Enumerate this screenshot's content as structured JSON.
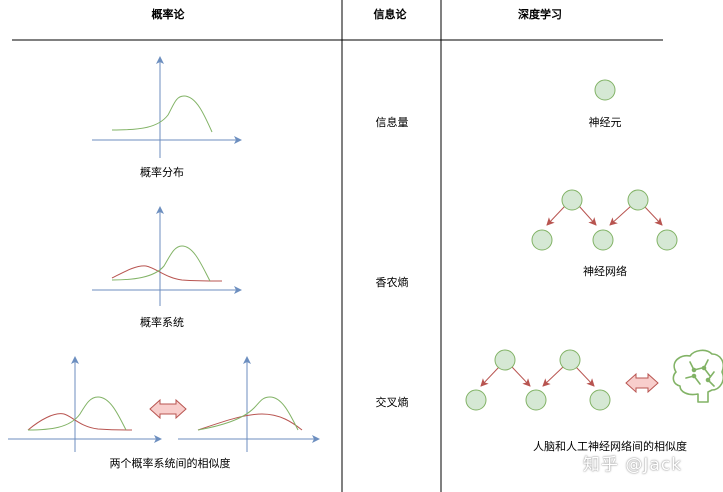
{
  "headers": {
    "probability": "概率论",
    "information": "信息论",
    "deep_learning": "深度学习"
  },
  "rows": [
    {
      "probability_label": "概率分布",
      "information_label": "信息量",
      "deep_learning_label": "神经元"
    },
    {
      "probability_label": "概率系统",
      "information_label": "香农熵",
      "deep_learning_label": "神经网络"
    },
    {
      "probability_label": "两个概率系统间的相似度",
      "information_label": "交叉熵",
      "deep_learning_label": "人脑和人工神经网络间的相似度"
    }
  ],
  "watermark": "知乎 @Jack",
  "colors": {
    "axis": "#6c8ebf",
    "curve_green": "#82b366",
    "curve_red": "#b85450",
    "node_fill": "#d5e8d4",
    "node_stroke": "#82b366",
    "edge": "#b85450",
    "arrow_fill": "#f8cecc",
    "arrow_stroke": "#b85450",
    "brain": "#82b366"
  },
  "icons": [
    "double-arrow-icon",
    "brain-icon"
  ]
}
